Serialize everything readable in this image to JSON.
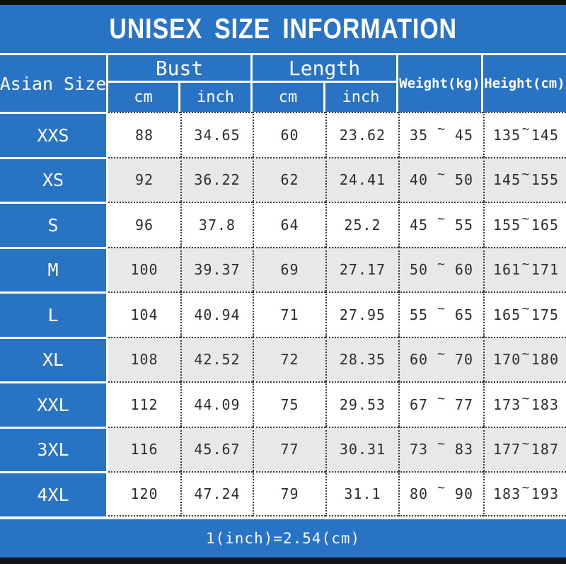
{
  "colors": {
    "blue": "#2873c3",
    "row_alt": "#e8e8e8",
    "bar_top": "#101010",
    "bar_bottom": "#15161a",
    "dotted_line": "#3a3a3a",
    "ink": "#2d2d2d",
    "text_on_blue": "#ffffff"
  },
  "footer": {
    "note": "1(inch)=2.54(cm)"
  },
  "chart_data": {
    "type": "table",
    "title": "UNISEX SIZE INFORMATION",
    "tilde": "~",
    "headers": {
      "asian_size": "Asian Size",
      "bust": "Bust",
      "length": "Length",
      "weight": "Weight(kg)",
      "height": "Height(cm)",
      "cm": "cm",
      "inch": "inch"
    },
    "columns": [
      "Asian Size",
      "Bust cm",
      "Bust inch",
      "Length cm",
      "Length inch",
      "Weight(kg)",
      "Height(cm)"
    ],
    "rows": [
      {
        "size": "XXS",
        "bust_cm": "88",
        "bust_inch": "34.65",
        "length_cm": "60",
        "length_inch": "23.62",
        "weight_min": "35",
        "weight_max": "45",
        "height_min": "135",
        "height_max": "145"
      },
      {
        "size": "XS",
        "bust_cm": "92",
        "bust_inch": "36.22",
        "length_cm": "62",
        "length_inch": "24.41",
        "weight_min": "40",
        "weight_max": "50",
        "height_min": "145",
        "height_max": "155"
      },
      {
        "size": "S",
        "bust_cm": "96",
        "bust_inch": "37.8",
        "length_cm": "64",
        "length_inch": "25.2",
        "weight_min": "45",
        "weight_max": "55",
        "height_min": "155",
        "height_max": "165"
      },
      {
        "size": "M",
        "bust_cm": "100",
        "bust_inch": "39.37",
        "length_cm": "69",
        "length_inch": "27.17",
        "weight_min": "50",
        "weight_max": "60",
        "height_min": "161",
        "height_max": "171"
      },
      {
        "size": "L",
        "bust_cm": "104",
        "bust_inch": "40.94",
        "length_cm": "71",
        "length_inch": "27.95",
        "weight_min": "55",
        "weight_max": "65",
        "height_min": "165",
        "height_max": "175"
      },
      {
        "size": "XL",
        "bust_cm": "108",
        "bust_inch": "42.52",
        "length_cm": "72",
        "length_inch": "28.35",
        "weight_min": "60",
        "weight_max": "70",
        "height_min": "170",
        "height_max": "180"
      },
      {
        "size": "XXL",
        "bust_cm": "112",
        "bust_inch": "44.09",
        "length_cm": "75",
        "length_inch": "29.53",
        "weight_min": "67",
        "weight_max": "77",
        "height_min": "173",
        "height_max": "183"
      },
      {
        "size": "3XL",
        "bust_cm": "116",
        "bust_inch": "45.67",
        "length_cm": "77",
        "length_inch": "30.31",
        "weight_min": "73",
        "weight_max": "83",
        "height_min": "177",
        "height_max": "187"
      },
      {
        "size": "4XL",
        "bust_cm": "120",
        "bust_inch": "47.24",
        "length_cm": "79",
        "length_inch": "31.1",
        "weight_min": "80",
        "weight_max": "90",
        "height_min": "183",
        "height_max": "193"
      }
    ]
  }
}
